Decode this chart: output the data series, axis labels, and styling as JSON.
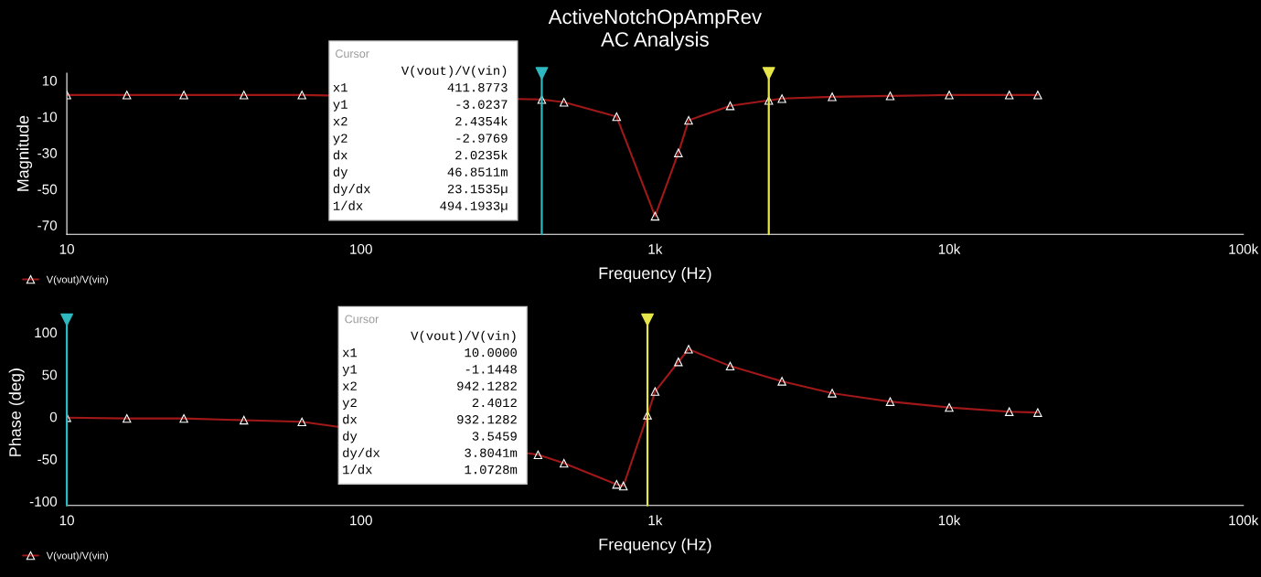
{
  "chart_data": [
    {
      "type": "line",
      "title": "ActiveNotchOpAmpRev",
      "subtitle": "AC Analysis",
      "xlabel": "Frequency (Hz)",
      "ylabel": "Magnitude",
      "log": "x",
      "x": [
        10,
        16,
        25,
        40,
        63,
        100,
        200,
        300,
        411.8773,
        490,
        740,
        1000,
        1200,
        1300,
        1800,
        2435.4,
        2700,
        4000,
        6300,
        10000,
        16000,
        20000
      ],
      "series": [
        {
          "name": "V(vout)/V(vin)",
          "color": "#a01818",
          "values": [
            2,
            2,
            2,
            2,
            2,
            null,
            null,
            null,
            -0.5,
            -2,
            -10,
            -65,
            -30,
            -12,
            -4,
            -1,
            0,
            1,
            1.5,
            2,
            2,
            2
          ]
        }
      ],
      "xlim": [
        10,
        100000
      ],
      "xticks": [
        10,
        100,
        {
          "value": 1000,
          "label": "1k"
        },
        {
          "value": 10000,
          "label": "10k"
        },
        {
          "value": 100000,
          "label": "100k"
        }
      ],
      "ylim": [
        -75,
        14
      ],
      "yticks": [
        10,
        -10,
        -30,
        -50,
        -70
      ],
      "ref_lines": [
        {
          "axis": "x",
          "value": 411.8773,
          "color": "#2fb8c0"
        },
        {
          "axis": "x",
          "value": 2435.4,
          "color": "#e6e64a"
        }
      ],
      "annotations": [
        "Cursor",
        "V(vout)/V(vin)",
        "x1 411.8773",
        "y1 -3.0237",
        "x2 2.4354k",
        "y2 -2.9769",
        "dx 2.0235k",
        "dy 46.8511m",
        "dy/dx 23.1535µ",
        "1/dx 494.1933µ"
      ],
      "legend": "bottom left",
      "marker": "triangle",
      "grid": false
    },
    {
      "type": "line",
      "xlabel": "Frequency (Hz)",
      "ylabel": "Phase (deg)",
      "log": "x",
      "x": [
        10,
        16,
        25,
        40,
        63,
        100,
        200,
        400,
        490,
        740,
        780,
        942.1282,
        1000,
        1200,
        1300,
        1800,
        2700,
        4000,
        6300,
        10000,
        16000,
        20000
      ],
      "series": [
        {
          "name": "V(vout)/V(vin)",
          "color": "#a01818",
          "values": [
            -1,
            -2,
            -2,
            -4,
            -6,
            null,
            null,
            -45,
            -55,
            -80,
            -82,
            2,
            30,
            65,
            80,
            60,
            42,
            28,
            18,
            11,
            6,
            5
          ]
        }
      ],
      "xlim": [
        10,
        100000
      ],
      "xticks": [
        10,
        100,
        {
          "value": 1000,
          "label": "1k"
        },
        {
          "value": 10000,
          "label": "10k"
        },
        {
          "value": 100000,
          "label": "100k"
        }
      ],
      "ylim": [
        -105,
        115
      ],
      "yticks": [
        100,
        50,
        0,
        -50,
        -100
      ],
      "ref_lines": [
        {
          "axis": "x",
          "value": 10,
          "color": "#2fb8c0"
        },
        {
          "axis": "x",
          "value": 942.1282,
          "color": "#e6e64a"
        }
      ],
      "annotations": [
        "Cursor",
        "V(vout)/V(vin)",
        "x1 10.0000",
        "y1 -1.1448",
        "x2 942.1282",
        "y2 2.4012",
        "dx 932.1282",
        "dy 3.5459",
        "dy/dx 3.8041m",
        "1/dx 1.0728m"
      ],
      "legend": "bottom left",
      "marker": "triangle",
      "grid": false
    }
  ]
}
